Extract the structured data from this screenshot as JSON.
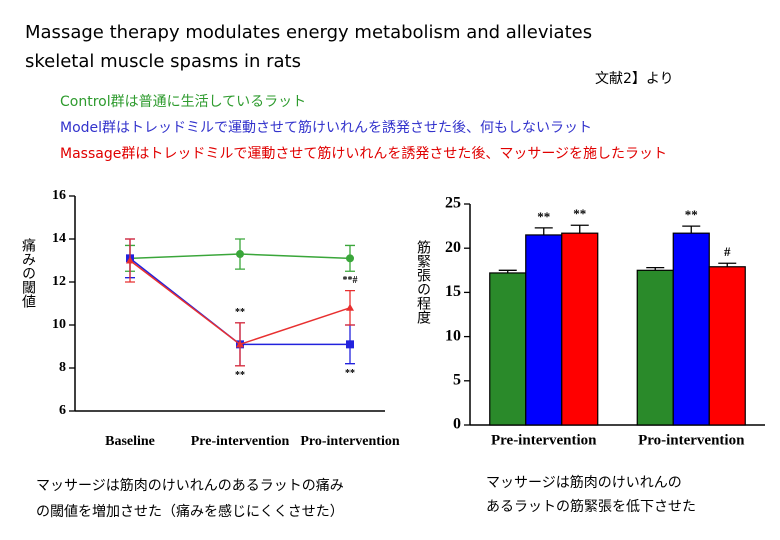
{
  "header": {
    "title_lines": [
      "Massage therapy modulates energy metabolism and alleviates",
      "skeletal muscle spasms in rats"
    ],
    "source": "文献2】より"
  },
  "notes": [
    {
      "text": "Control群は普通に生活しているラット",
      "color": "#2e9b2e"
    },
    {
      "text": "Model群はトレッドミルで運動させて筋けいれんを誘発させた後、何もしないラット",
      "color": "#3333cc"
    },
    {
      "text": "Massage群はトレッドミルで運動させて筋けいれんを誘発させた後、マッサージを施したラット",
      "color": "#e00000"
    }
  ],
  "chart_data": [
    {
      "type": "line",
      "y_label": "痛みの閾値",
      "categories": [
        "Baseline",
        "Pre-intervention",
        "Pro-intervention"
      ],
      "ylim": [
        6,
        16
      ],
      "yticks": [
        6,
        8,
        10,
        12,
        14,
        16
      ],
      "series": [
        {
          "color": "#3aa63a",
          "marker": "circle",
          "values": [
            13.1,
            13.3,
            13.1
          ],
          "errors": [
            0.6,
            0.7,
            0.6
          ],
          "annotations_below": [
            null,
            null,
            null
          ],
          "annotations_above": [
            null,
            null,
            null
          ]
        },
        {
          "color": "#2222dd",
          "marker": "square",
          "values": [
            13.1,
            9.1,
            9.1
          ],
          "errors": [
            0.9,
            1.0,
            0.9
          ],
          "annotations_below": [
            null,
            "**",
            "**"
          ],
          "annotations_above": [
            null,
            null,
            null
          ]
        },
        {
          "color": "#e83030",
          "marker": "triangle",
          "values": [
            13.0,
            9.1,
            10.8
          ],
          "errors": [
            1.0,
            1.0,
            0.8
          ],
          "annotations_below": [
            null,
            null,
            null
          ],
          "annotations_above": [
            null,
            "**",
            "**#"
          ]
        }
      ],
      "caption": [
        "マッサージは筋肉のけいれんのあるラットの痛み",
        "の閾値を増加させた（痛みを感じにくくさせた）"
      ]
    },
    {
      "type": "bar",
      "y_label": "筋緊張の程度",
      "categories": [
        "Pre-intervention",
        "Pro-intervention"
      ],
      "ylim": [
        0,
        25
      ],
      "yticks": [
        0,
        5,
        10,
        15,
        20,
        25
      ],
      "series": [
        {
          "color": "#2a8a2a",
          "values": [
            17.2,
            17.5
          ],
          "errors": [
            0.3,
            0.3
          ],
          "annotations": [
            null,
            null
          ]
        },
        {
          "color": "#0000ff",
          "values": [
            21.5,
            21.7
          ],
          "errors": [
            0.8,
            0.8
          ],
          "annotations": [
            "**",
            "**"
          ]
        },
        {
          "color": "#ff0000",
          "values": [
            21.7,
            17.9
          ],
          "errors": [
            0.9,
            0.4
          ],
          "annotations": [
            "**",
            "#"
          ]
        }
      ],
      "caption": [
        "マッサージは筋肉のけいれんの",
        "あるラットの筋緊張を低下させた"
      ]
    }
  ]
}
